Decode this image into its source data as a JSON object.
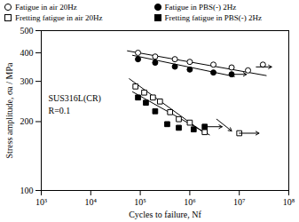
{
  "chart_data": {
    "type": "scatter",
    "xlabel": "Cycles to failure, Nf",
    "ylabel": "Stress amplitude, σa / MPa",
    "annotations": [
      "SUS316L(CR)",
      "R=0.1"
    ],
    "log": true,
    "xlim": [
      1000,
      100000000
    ],
    "ylim": [
      100,
      500
    ],
    "xticks": [
      {
        "value": 1000,
        "label": "10³"
      },
      {
        "value": 10000,
        "label": "10⁴"
      },
      {
        "value": 100000,
        "label": "10⁵"
      },
      {
        "value": 1000000,
        "label": "10⁶"
      },
      {
        "value": 10000000,
        "label": "10⁷"
      },
      {
        "value": 100000000,
        "label": "10⁸"
      }
    ],
    "yticks": [
      100,
      200,
      300,
      400,
      500
    ],
    "grid": false,
    "legend": "top",
    "series": [
      {
        "name": "Fatigue in air 20Hz",
        "color": "black",
        "marker": "open_circle",
        "x": [
          90000.0,
          200000.0,
          500000.0,
          1000000.0,
          3000000.0,
          7000000.0,
          15000000.0,
          30000000.0
        ],
        "y": [
          400,
          385,
          375,
          365,
          355,
          345,
          335,
          355
        ]
      },
      {
        "name": "Fatigue in PBS(-) 2Hz",
        "color": "black",
        "marker": "filled_circle",
        "x": [
          90000.0,
          200000.0,
          500000.0,
          1000000.0,
          3000000.0,
          7000000.0
        ],
        "y": [
          375,
          362,
          348,
          338,
          328,
          322
        ]
      },
      {
        "name": "Fretting fatigue in air 20Hz",
        "color": "black",
        "marker": "open_square",
        "x": [
          80000.0,
          120000.0,
          180000.0,
          250000.0,
          400000.0,
          600000.0,
          1000000.0,
          2000000.0,
          10000000.0
        ],
        "y": [
          285,
          268,
          255,
          245,
          220,
          205,
          198,
          180,
          178
        ]
      },
      {
        "name": "Fretting fatigue in PBS(-) 2Hz",
        "color": "black",
        "marker": "filled_square",
        "x": [
          90000.0,
          130000.0,
          200000.0,
          350000.0,
          600000.0,
          1200000.0,
          2000000.0
        ],
        "y": [
          255,
          242,
          222,
          195,
          188,
          185,
          190
        ]
      }
    ],
    "fit_lines": [
      {
        "color": "black",
        "line_style": "solid",
        "x": [
          55000.0,
          35000000.0
        ],
        "y": [
          408,
          318
        ]
      },
      {
        "color": "black",
        "line_style": "solid",
        "x": [
          70000.0,
          8000000.0
        ],
        "y": [
          390,
          315
        ]
      },
      {
        "color": "black",
        "line_style": "solid",
        "x": [
          60000.0,
          2000000.0
        ],
        "y": [
          308,
          178
        ]
      },
      {
        "color": "black",
        "line_style": "solid",
        "x": [
          70000.0,
          2500000.0
        ],
        "y": [
          270,
          175
        ]
      }
    ],
    "arrows": [
      {
        "x1": 22000000.0,
        "y1": 347,
        "x2": 45000000.0,
        "y2": 347
      },
      {
        "x1": 7000000.0,
        "y1": 322,
        "x2": 14000000.0,
        "y2": 322
      },
      {
        "x1": 10000000.0,
        "y1": 178,
        "x2": 25000000.0,
        "y2": 178
      },
      {
        "x1": 2000000.0,
        "y1": 190,
        "x2": 4500000.0,
        "y2": 190
      },
      {
        "x1": 3500000.0,
        "y1": 205,
        "x2": 7000000.0,
        "y2": 182
      }
    ]
  }
}
